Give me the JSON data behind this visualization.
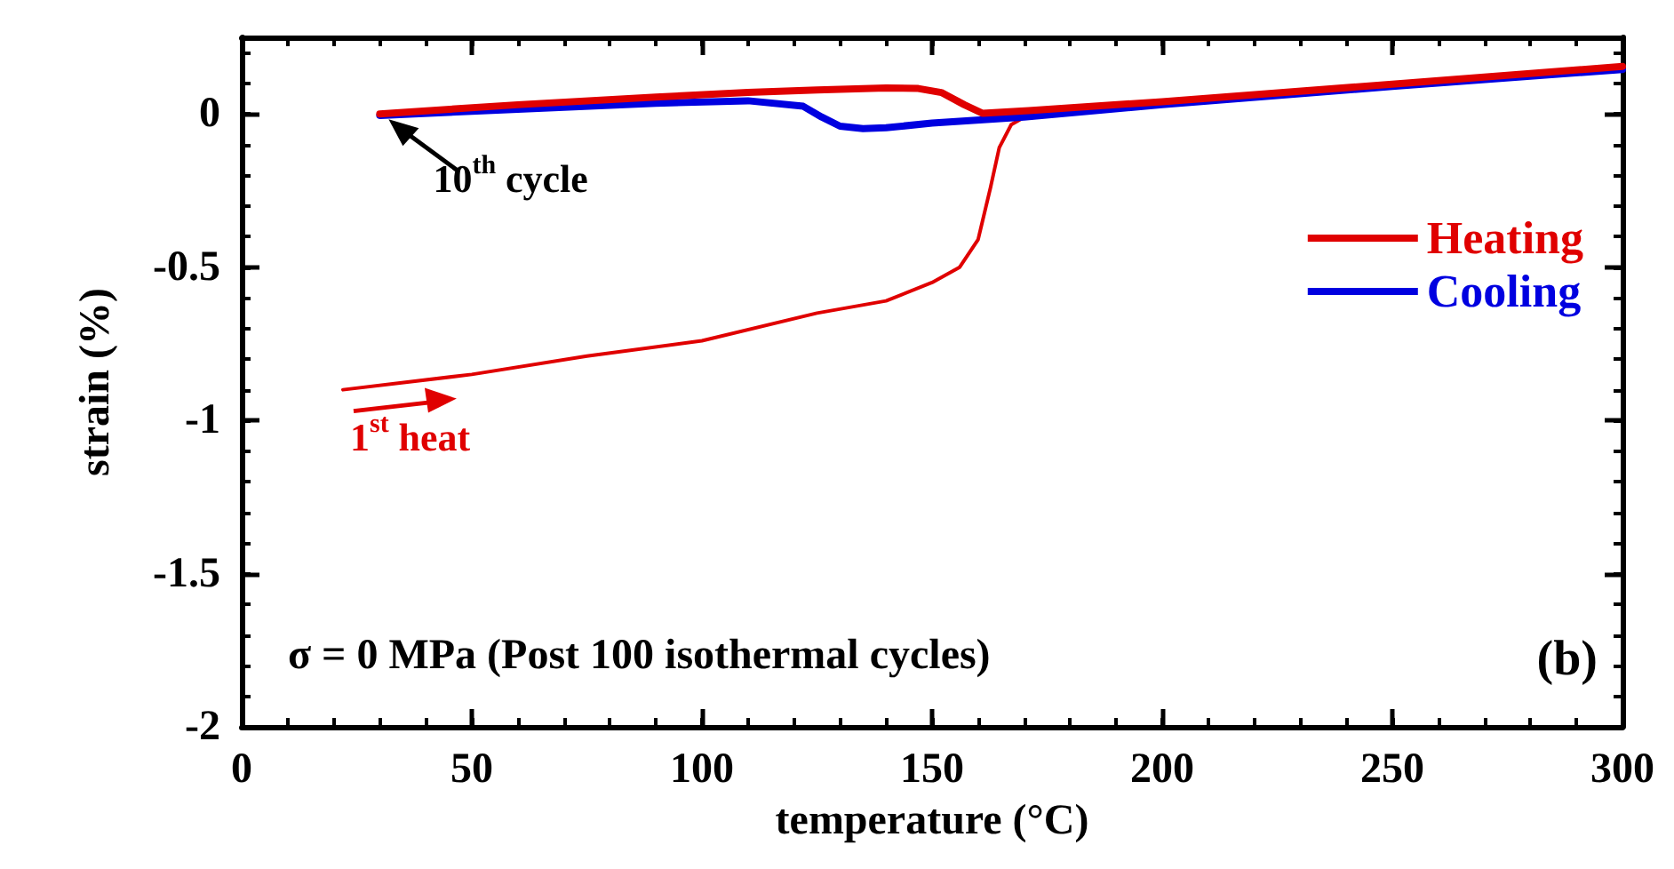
{
  "chart_data": {
    "type": "line",
    "xlabel": "temperature (°C)",
    "ylabel": "strain (%)",
    "xlim": [
      0,
      300
    ],
    "xticks": [
      0,
      50,
      100,
      150,
      200,
      250,
      300
    ],
    "ylim": [
      -2,
      0.25
    ],
    "yticks": [
      -2,
      -1.5,
      -1,
      -0.5,
      0
    ],
    "grid": false,
    "legend": "right",
    "marker": "none",
    "line_style": "solid",
    "series": [
      {
        "name": "Heating",
        "color": "#e00000",
        "x": [
          30,
          60,
          90,
          110,
          125,
          140,
          147,
          152,
          157,
          161,
          171,
          200,
          250,
          300
        ],
        "values": [
          0,
          0.03,
          0.055,
          0.07,
          0.078,
          0.085,
          0.083,
          0.07,
          0.03,
          0.002,
          0.011,
          0.04,
          0.097,
          0.155
        ]
      },
      {
        "name": "Cooling",
        "color": "#0000e0",
        "x": [
          300,
          250,
          200,
          170,
          150,
          140,
          135,
          130,
          126,
          122,
          110,
          90,
          60,
          30
        ],
        "values": [
          0.145,
          0.09,
          0.03,
          -0.01,
          -0.03,
          -0.045,
          -0.048,
          -0.04,
          -0.01,
          0.025,
          0.043,
          0.035,
          0.015,
          -0.005
        ]
      },
      {
        "color": "#e00000",
        "x": [
          22,
          50,
          75,
          100,
          125,
          140,
          150,
          156,
          160,
          162.7,
          164.6,
          167.2,
          171,
          175
        ],
        "values": [
          -0.9,
          -0.85,
          -0.79,
          -0.74,
          -0.65,
          -0.61,
          -0.55,
          -0.5,
          -0.41,
          -0.24,
          -0.11,
          -0.035,
          -0.002,
          0.012
        ]
      }
    ],
    "annotations": [
      {
        "text": "10$^{th}$ cycle",
        "x": 30,
        "y": 0
      },
      {
        "text": "1$^{st}$ heat",
        "x": 22,
        "y": -0.9
      },
      "σ = 0 MPa (Post 100 isothermal cycles)",
      "(b)"
    ]
  }
}
